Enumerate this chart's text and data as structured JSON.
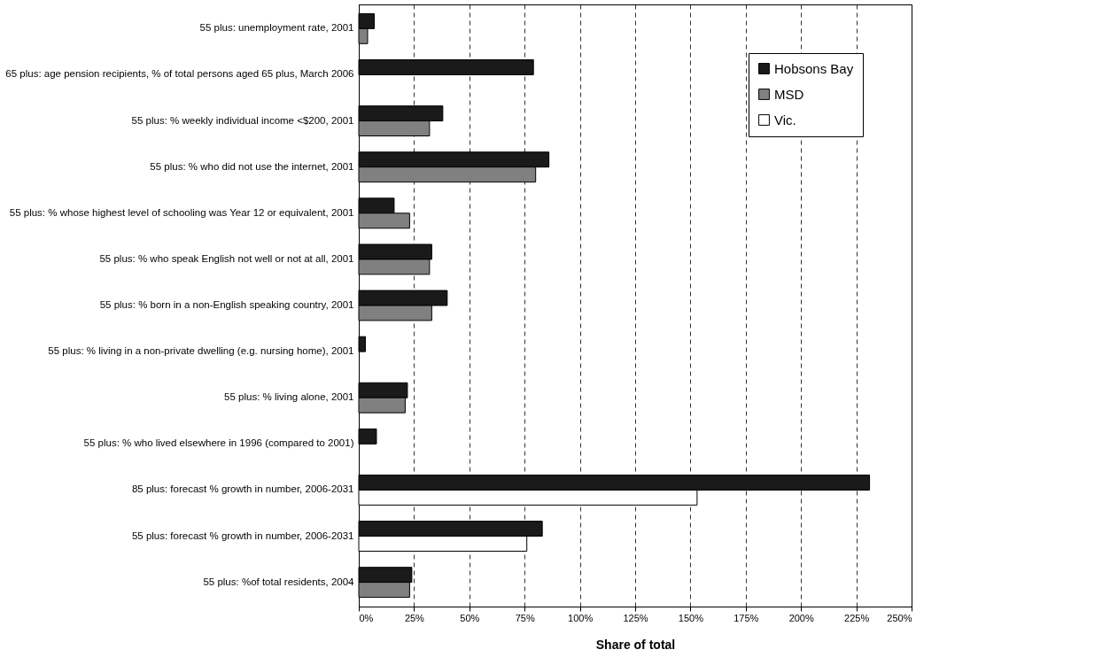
{
  "chart_data": {
    "type": "bar",
    "orientation": "horizontal",
    "xlabel": "Share of total",
    "categories": [
      "55 plus: unemployment rate, 2001",
      "65 plus: age pension recipients, % of total persons aged 65 plus, March 2006",
      "55 plus: % weekly individual income <$200, 2001",
      "55 plus: % who did not use the internet, 2001",
      "55 plus: % whose highest level of schooling was Year 12 or equivalent, 2001",
      "55 plus: % who speak English not well or not at all, 2001",
      "55 plus: % born in a non-English speaking country, 2001",
      "55 plus: % living in a non-private dwelling (e.g. nursing home), 2001",
      "55 plus: % living alone, 2001",
      "55 plus: % who lived elsewhere in 1996 (compared to 2001)",
      "85 plus: forecast % growth in number, 2006-2031",
      "55 plus: forecast % growth in number, 2006-2031",
      "55 plus: %of total residents, 2004"
    ],
    "series": [
      {
        "name": "Hobsons Bay",
        "color": "#1a1a1a",
        "values": [
          7,
          79,
          38,
          86,
          16,
          33,
          40,
          3,
          22,
          8,
          231,
          83,
          24
        ]
      },
      {
        "name": "MSD",
        "color": "#808080",
        "values": [
          4,
          null,
          32,
          80,
          23,
          32,
          33,
          null,
          21,
          null,
          null,
          null,
          23
        ]
      },
      {
        "name": "Vic.",
        "color": "#ffffff",
        "values": [
          null,
          null,
          null,
          null,
          null,
          null,
          null,
          null,
          null,
          null,
          153,
          76,
          null
        ]
      }
    ],
    "xlim": [
      0,
      250
    ],
    "xticks": [
      {
        "value": 0,
        "label": "0%"
      },
      {
        "value": 25,
        "label": "25%"
      },
      {
        "value": 50,
        "label": "50%"
      },
      {
        "value": 75,
        "label": "75%"
      },
      {
        "value": 100,
        "label": "100%"
      },
      {
        "value": 125,
        "label": "125%"
      },
      {
        "value": 150,
        "label": "150%"
      },
      {
        "value": 175,
        "label": "175%"
      },
      {
        "value": 200,
        "label": "200%"
      },
      {
        "value": 225,
        "label": "225%"
      },
      {
        "value": 250,
        "label": "250%"
      }
    ],
    "grid": "x",
    "legend": "top right"
  }
}
